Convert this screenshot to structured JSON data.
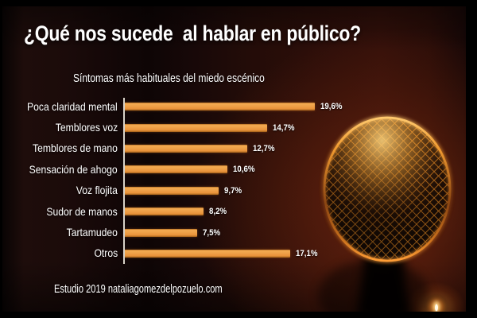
{
  "header": {
    "title": "¿Qué nos sucede  al hablar en público?"
  },
  "footer": {
    "credit": "Estudio 2019 nataliagomezdelpozuelo.com"
  },
  "chart_data": {
    "type": "bar",
    "orientation": "horizontal",
    "title": "Síntomas más habituales del miedo escénico",
    "categories": [
      "Poca claridad mental",
      "Temblores voz",
      "Temblores de mano",
      "Sensación de ahogo",
      "Voz flojita",
      "Sudor de manos",
      "Tartamudeo",
      "Otros"
    ],
    "values": [
      19.6,
      14.7,
      12.7,
      10.6,
      9.7,
      8.2,
      7.5,
      17.1
    ],
    "value_labels": [
      "19,6%",
      "14,7%",
      "12,7%",
      "10,6%",
      "9,7%",
      "8,2%",
      "7,5%",
      "17,1%"
    ],
    "xlim": [
      0,
      20
    ],
    "grid": false,
    "legend": false,
    "bar_color": "#ED9E43",
    "axis_line_color": "#D8D2C8",
    "label_color": "#FFFFFF",
    "background_theme": "dark red stage curtain"
  },
  "decor": {
    "microphone_icon": "golden mesh-ball vintage microphone",
    "candle_light_icon": "small warm flame glow"
  }
}
